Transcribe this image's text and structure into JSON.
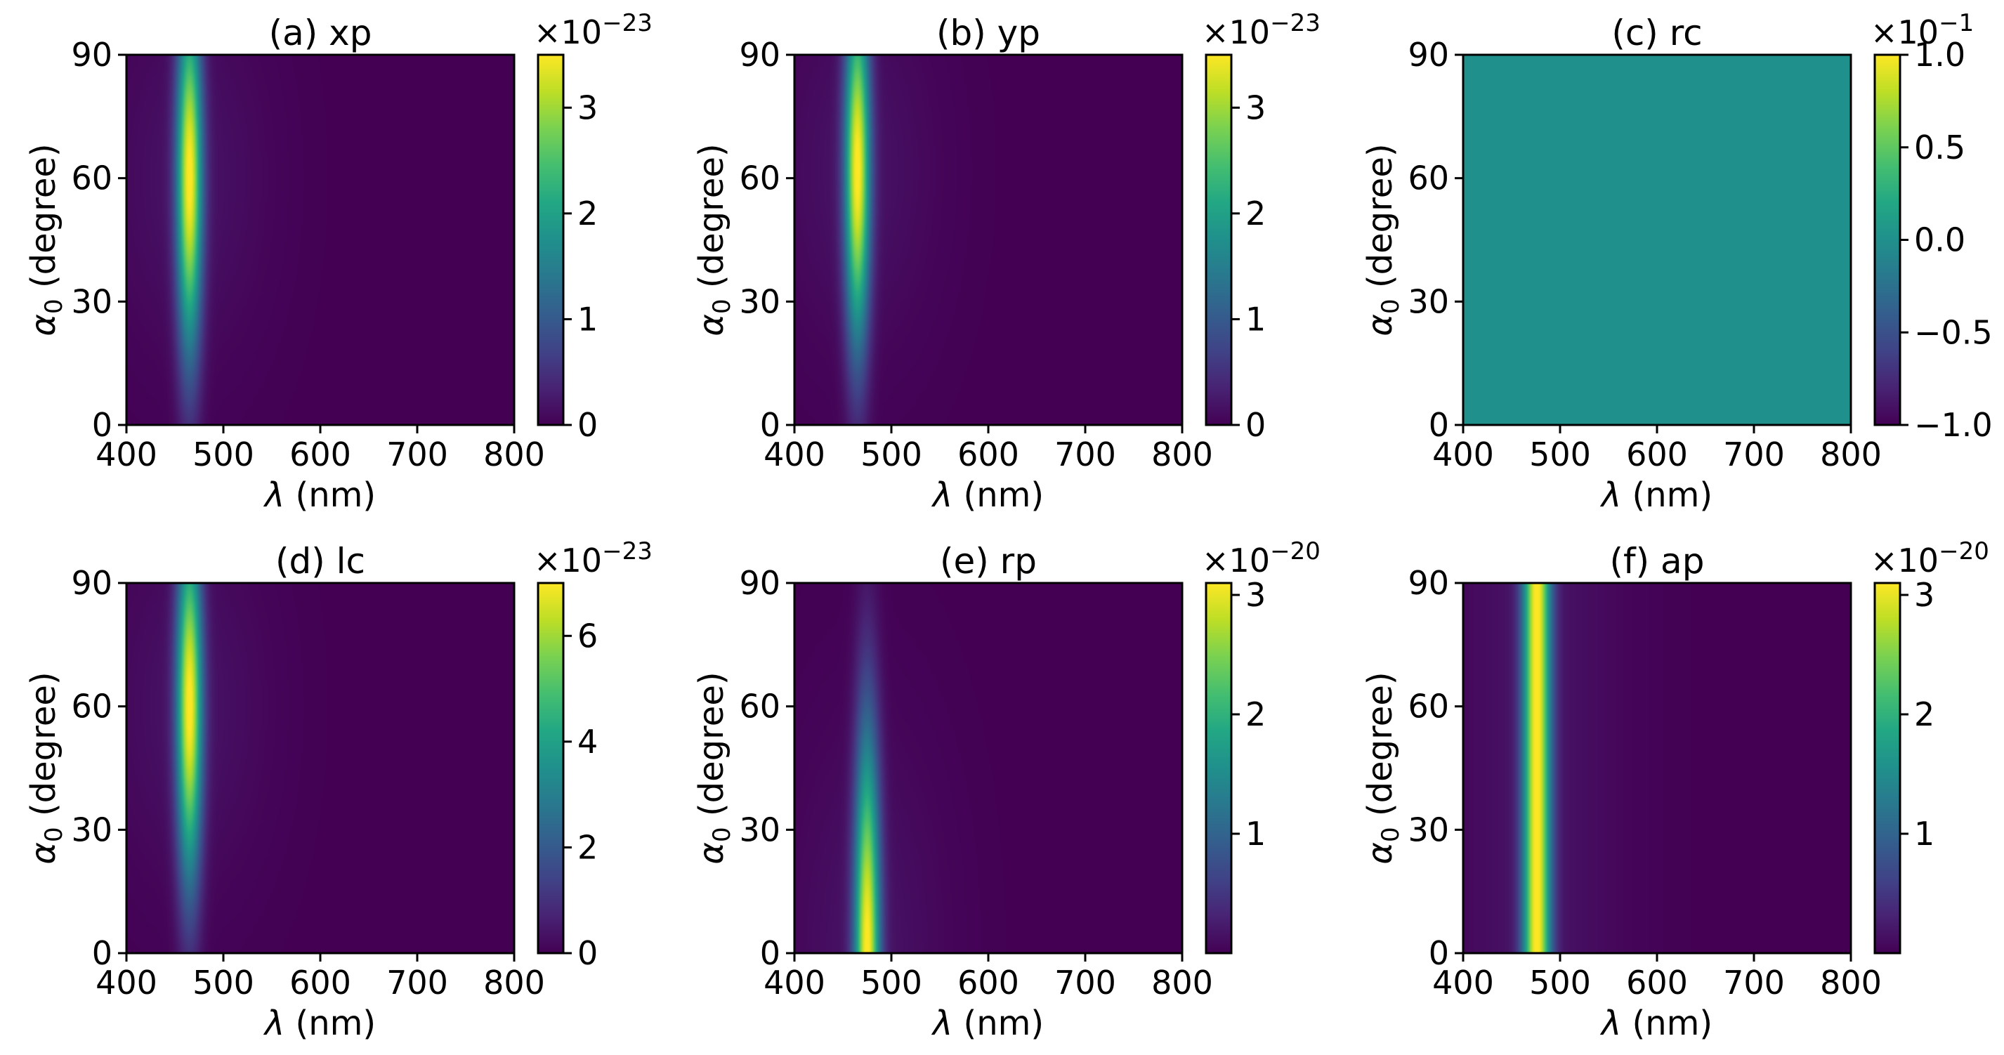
{
  "chart_data": [
    {
      "type": "heatmap",
      "title": "(a) xp",
      "xlabel": "λ (nm)",
      "ylabel": "α0  (degree)",
      "xlim": [
        400,
        800
      ],
      "ylim": [
        0,
        90
      ],
      "xticks": [
        "400",
        "500",
        "600",
        "700",
        "800"
      ],
      "yticks": [
        "0",
        "30",
        "60",
        "90"
      ],
      "colorbar": {
        "min": 0,
        "max": 3.5,
        "ticks": [
          "0",
          "1",
          "2",
          "3"
        ],
        "tick_values": [
          0,
          1,
          2,
          3
        ],
        "offset": "×10−23"
      },
      "peak": {
        "lambda_nm": 465,
        "alpha_peak_deg": 60,
        "width_nm": 9,
        "alpha_spread_deg": 30,
        "max": 3.5
      }
    },
    {
      "type": "heatmap",
      "title": "(b) yp",
      "xlabel": "λ (nm)",
      "ylabel": "α0  (degree)",
      "xlim": [
        400,
        800
      ],
      "ylim": [
        0,
        90
      ],
      "xticks": [
        "400",
        "500",
        "600",
        "700",
        "800"
      ],
      "yticks": [
        "0",
        "30",
        "60",
        "90"
      ],
      "colorbar": {
        "min": 0,
        "max": 3.5,
        "ticks": [
          "0",
          "1",
          "2",
          "3"
        ],
        "tick_values": [
          0,
          1,
          2,
          3
        ],
        "offset": "×10−23"
      },
      "peak": {
        "lambda_nm": 465,
        "alpha_peak_deg": 62,
        "width_nm": 9,
        "alpha_spread_deg": 30,
        "max": 3.5
      }
    },
    {
      "type": "heatmap",
      "title": "(c) rc",
      "xlabel": "λ (nm)",
      "ylabel": "α0  (degree)",
      "xlim": [
        400,
        800
      ],
      "ylim": [
        0,
        90
      ],
      "xticks": [
        "400",
        "500",
        "600",
        "700",
        "800"
      ],
      "yticks": [
        "0",
        "30",
        "60",
        "90"
      ],
      "colorbar": {
        "min": -1.0,
        "max": 1.0,
        "ticks": [
          "−1.0",
          "−0.5",
          "0.0",
          "0.5",
          "1.0"
        ],
        "tick_values": [
          -1.0,
          -0.5,
          0.0,
          0.5,
          1.0
        ],
        "offset": "×10−1"
      },
      "uniform_value": 0.0
    },
    {
      "type": "heatmap",
      "title": "(d) lc",
      "xlabel": "λ (nm)",
      "ylabel": "α0  (degree)",
      "xlim": [
        400,
        800
      ],
      "ylim": [
        0,
        90
      ],
      "xticks": [
        "400",
        "500",
        "600",
        "700",
        "800"
      ],
      "yticks": [
        "0",
        "30",
        "60",
        "90"
      ],
      "colorbar": {
        "min": 0,
        "max": 7,
        "ticks": [
          "0",
          "2",
          "4",
          "6"
        ],
        "tick_values": [
          0,
          2,
          4,
          6
        ],
        "offset": "×10−23"
      },
      "peak": {
        "lambda_nm": 465,
        "alpha_peak_deg": 60,
        "width_nm": 9,
        "alpha_spread_deg": 30,
        "max": 7
      }
    },
    {
      "type": "heatmap",
      "title": "(e) rp",
      "xlabel": "λ (nm)",
      "ylabel": "α0  (degree)",
      "xlim": [
        400,
        800
      ],
      "ylim": [
        0,
        90
      ],
      "xticks": [
        "400",
        "500",
        "600",
        "700",
        "800"
      ],
      "yticks": [
        "0",
        "30",
        "60",
        "90"
      ],
      "colorbar": {
        "min": 0,
        "max": 3.1,
        "ticks": [
          "1",
          "2",
          "3"
        ],
        "tick_values": [
          1,
          2,
          3
        ],
        "offset": "×10−20"
      },
      "peak": {
        "lambda_nm": 475,
        "alpha_peak_deg": 0,
        "width_nm": 9,
        "alpha_spread_deg": 38,
        "max": 3.1
      }
    },
    {
      "type": "heatmap",
      "title": "(f) ap",
      "xlabel": "λ (nm)",
      "ylabel": "α0  (degree)",
      "xlim": [
        400,
        800
      ],
      "ylim": [
        0,
        90
      ],
      "xticks": [
        "400",
        "500",
        "600",
        "700",
        "800"
      ],
      "yticks": [
        "0",
        "30",
        "60",
        "90"
      ],
      "colorbar": {
        "min": 0,
        "max": 3.1,
        "ticks": [
          "1",
          "2",
          "3"
        ],
        "tick_values": [
          1,
          2,
          3
        ],
        "offset": "×10−20"
      },
      "peak": {
        "lambda_nm": 476,
        "alpha_peak_deg": 45,
        "width_nm": 10,
        "alpha_spread_deg": 0,
        "max": 3.1
      }
    }
  ],
  "colors": {
    "viridis_low": "#440154",
    "viridis_mid": "#21918c",
    "viridis_high": "#fde725"
  }
}
